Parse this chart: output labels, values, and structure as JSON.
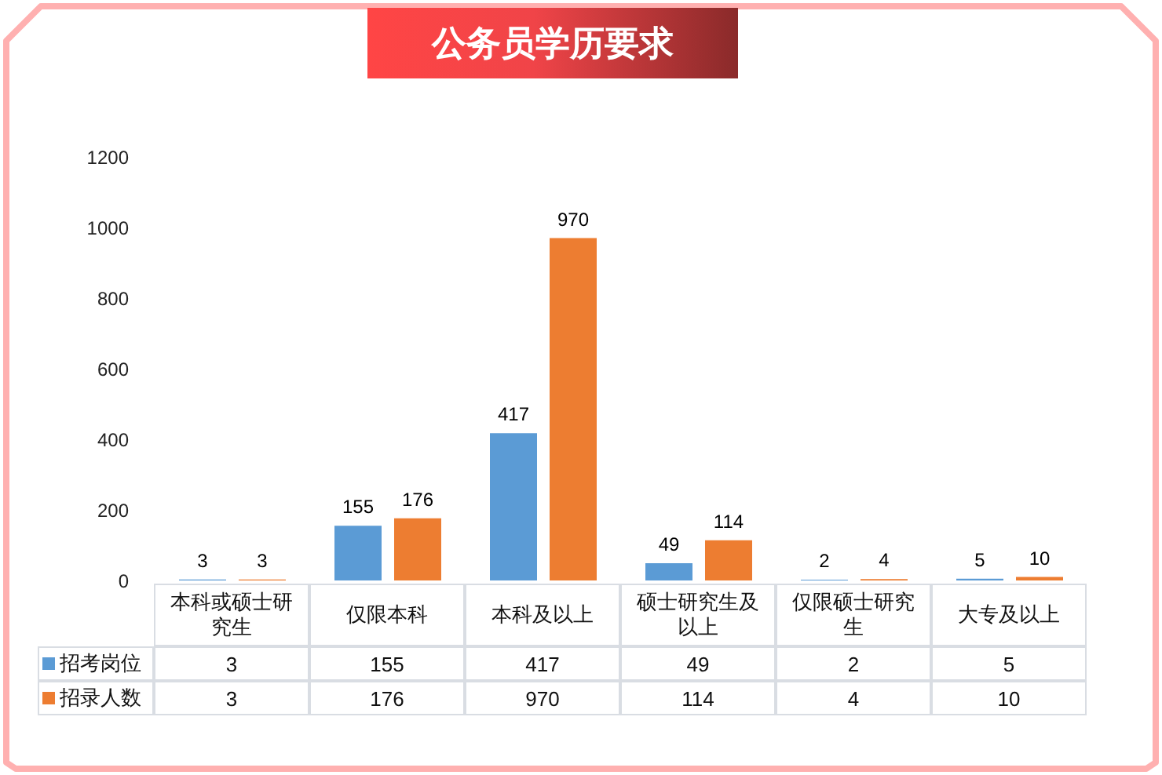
{
  "chart_data": [
    {
      "type": "bar",
      "title": "公务员学历要求",
      "categories": [
        "本科或硕士研究生",
        "仅限本科",
        "本科及以上",
        "硕士研究生及以上",
        "仅限硕士研究生",
        "大专及以上"
      ],
      "series": [
        {
          "name": "招考岗位",
          "color": "#5b9bd5",
          "values": [
            3,
            155,
            417,
            49,
            2,
            5
          ],
          "value_labels": [
            "3",
            "155",
            "417",
            "49",
            "2",
            "5"
          ]
        },
        {
          "name": "招录人数",
          "color": "#ed7d31",
          "values": [
            3,
            176,
            970,
            114,
            4,
            10
          ],
          "value_labels": [
            "3",
            "176",
            "970",
            "114",
            "4",
            "10"
          ]
        }
      ],
      "ylim": [
        0,
        1200
      ],
      "yticks": [
        0,
        200,
        400,
        600,
        800,
        1000,
        1200
      ],
      "legend": "bottom"
    },
    {
      "type": "other",
      "annotations": [
        "3",
        "155",
        "417",
        "49",
        "2",
        "5",
        "3",
        "176",
        "970",
        "114",
        "4",
        "10"
      ]
    }
  ]
}
